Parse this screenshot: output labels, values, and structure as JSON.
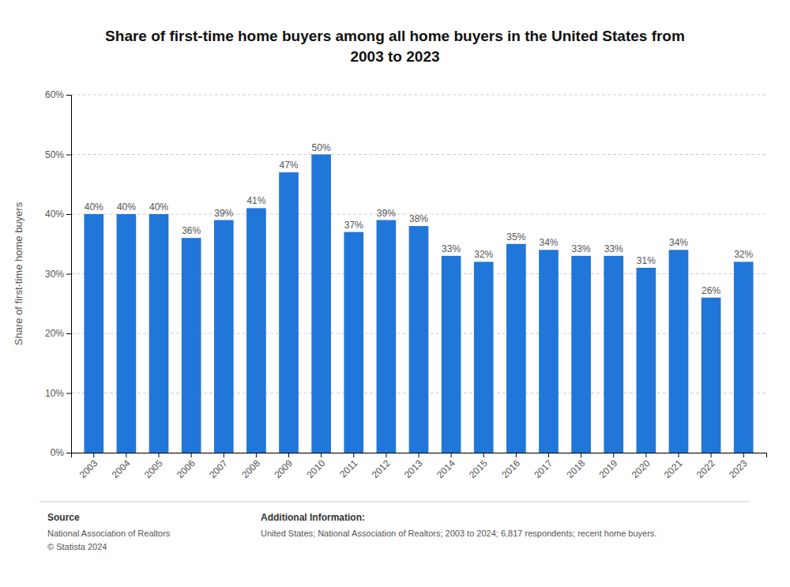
{
  "chart_data": {
    "type": "bar",
    "title": "Share of first-time home buyers among all home buyers in the United States from\n2003 to 2023",
    "categories": [
      "2003",
      "2004",
      "2005",
      "2006",
      "2007",
      "2008",
      "2009",
      "2010",
      "2011",
      "2012",
      "2013",
      "2014",
      "2015",
      "2016",
      "2017",
      "2018",
      "2019",
      "2020",
      "2021",
      "2022",
      "2023"
    ],
    "values": [
      40,
      40,
      40,
      36,
      39,
      41,
      47,
      50,
      37,
      39,
      38,
      33,
      32,
      35,
      34,
      33,
      33,
      31,
      34,
      26,
      32
    ],
    "value_labels": [
      "40%",
      "40%",
      "40%",
      "36%",
      "39%",
      "41%",
      "47%",
      "50%",
      "37%",
      "39%",
      "38%",
      "33%",
      "32%",
      "35%",
      "34%",
      "33%",
      "33%",
      "31%",
      "34%",
      "26%",
      "32%"
    ],
    "data_labels": true,
    "color": "#2176d9",
    "y_label": "Share of first-time home buyers",
    "ylim": [
      0,
      60
    ],
    "yticks": [
      {
        "value": 0,
        "label": "0%"
      },
      {
        "value": 10,
        "label": "10%"
      },
      {
        "value": 20,
        "label": "20%"
      },
      {
        "value": 30,
        "label": "30%"
      },
      {
        "value": 40,
        "label": "40%"
      },
      {
        "value": 50,
        "label": "50%"
      },
      {
        "value": 60,
        "label": "60%"
      }
    ],
    "grid": true,
    "annotations": [
      {
        "title": "Source",
        "text": "National Association of Realtors\n© Statista 2024"
      },
      {
        "title": "Additional Information:",
        "text": "United States; National Association of Realtors; 2003 to 2024; 6,817 respondents; recent home buyers."
      }
    ]
  }
}
